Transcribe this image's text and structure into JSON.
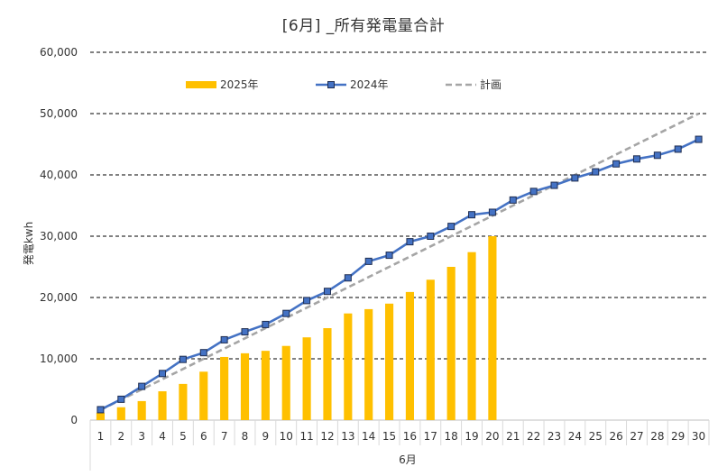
{
  "chart_data": {
    "type": "bar",
    "title": "[6月] _所有発電量合計",
    "ylabel": "発電kwh",
    "xlabel": "6月",
    "ylim": [
      0,
      60000
    ],
    "yticks": [
      0,
      10000,
      20000,
      30000,
      40000,
      50000,
      60000
    ],
    "ytick_labels": [
      "0",
      "10,000",
      "20,000",
      "30,000",
      "40,000",
      "50,000",
      "60,000"
    ],
    "grid": "horizontal dashed",
    "legend_position": "top-left",
    "categories": [
      "1",
      "2",
      "3",
      "4",
      "5",
      "6",
      "7",
      "8",
      "9",
      "10",
      "11",
      "12",
      "13",
      "14",
      "15",
      "16",
      "17",
      "18",
      "19",
      "20",
      "21",
      "22",
      "23",
      "24",
      "25",
      "26",
      "27",
      "28",
      "29",
      "30"
    ],
    "series": [
      {
        "name": "2025年",
        "type": "bar",
        "color": "#FFC000",
        "values": [
          1200,
          2100,
          3100,
          4700,
          5900,
          7900,
          10300,
          10900,
          11300,
          12100,
          13500,
          15000,
          17400,
          18100,
          19000,
          20900,
          22900,
          25000,
          27400,
          30000,
          null,
          null,
          null,
          null,
          null,
          null,
          null,
          null,
          null,
          null
        ]
      },
      {
        "name": "2024年",
        "type": "line",
        "color": "#4472C4",
        "marker": "square",
        "values": [
          1700,
          3400,
          5500,
          7600,
          9900,
          11000,
          13100,
          14400,
          15600,
          17400,
          19500,
          21000,
          23200,
          25900,
          26900,
          29100,
          30000,
          31600,
          33500,
          33900,
          35900,
          37300,
          38300,
          39500,
          40500,
          41800,
          42600,
          43200,
          44200,
          45800
        ]
      },
      {
        "name": "計画",
        "type": "line",
        "style": "dashed",
        "color": "#A5A5A5",
        "values": [
          1667,
          3333,
          5000,
          6667,
          8333,
          10000,
          11667,
          13333,
          15000,
          16667,
          18333,
          20000,
          21667,
          23333,
          25000,
          26667,
          28333,
          30000,
          31667,
          33333,
          35000,
          36667,
          38333,
          40000,
          41667,
          43333,
          45000,
          46667,
          48333,
          50000
        ]
      }
    ]
  }
}
